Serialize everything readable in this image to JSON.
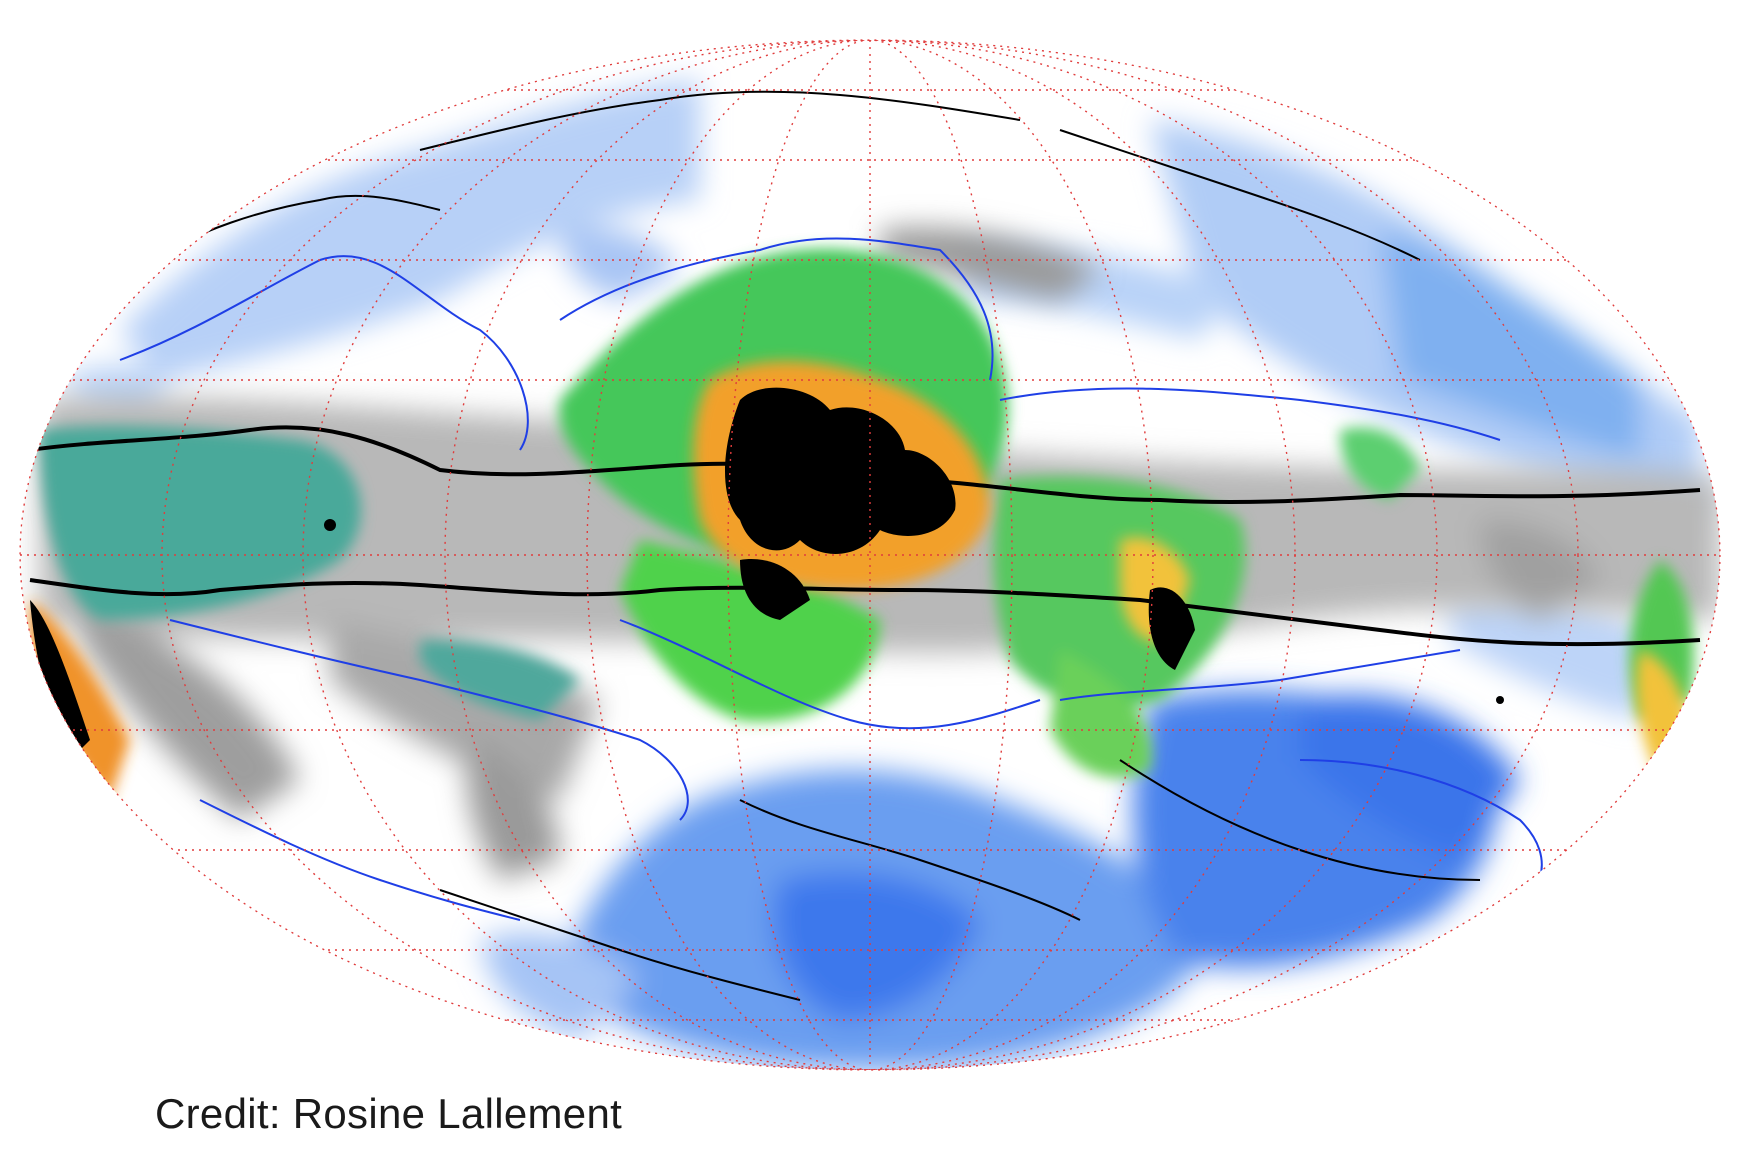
{
  "credit": "Credit: Rosine Lallement",
  "colors": {
    "background": "#ffffff",
    "graticule": "#e03c3c",
    "contour_outer": "#000000",
    "contour_blue": "#1f3fe6",
    "sky_light_blue": "#a9c8f5",
    "sky_medium_blue": "#6a9ef0",
    "sky_deep_blue": "#3a78ea",
    "dust_gray": "#8f8f8f",
    "dust_teal": "#3a9a8e",
    "dust_green": "#4fd24b",
    "dust_yellow": "#f2e23a",
    "dust_orange": "#f0932a",
    "dust_black": "#000000"
  },
  "projection": "Aitoff / Hammer all-sky (Galactic coordinates)"
}
